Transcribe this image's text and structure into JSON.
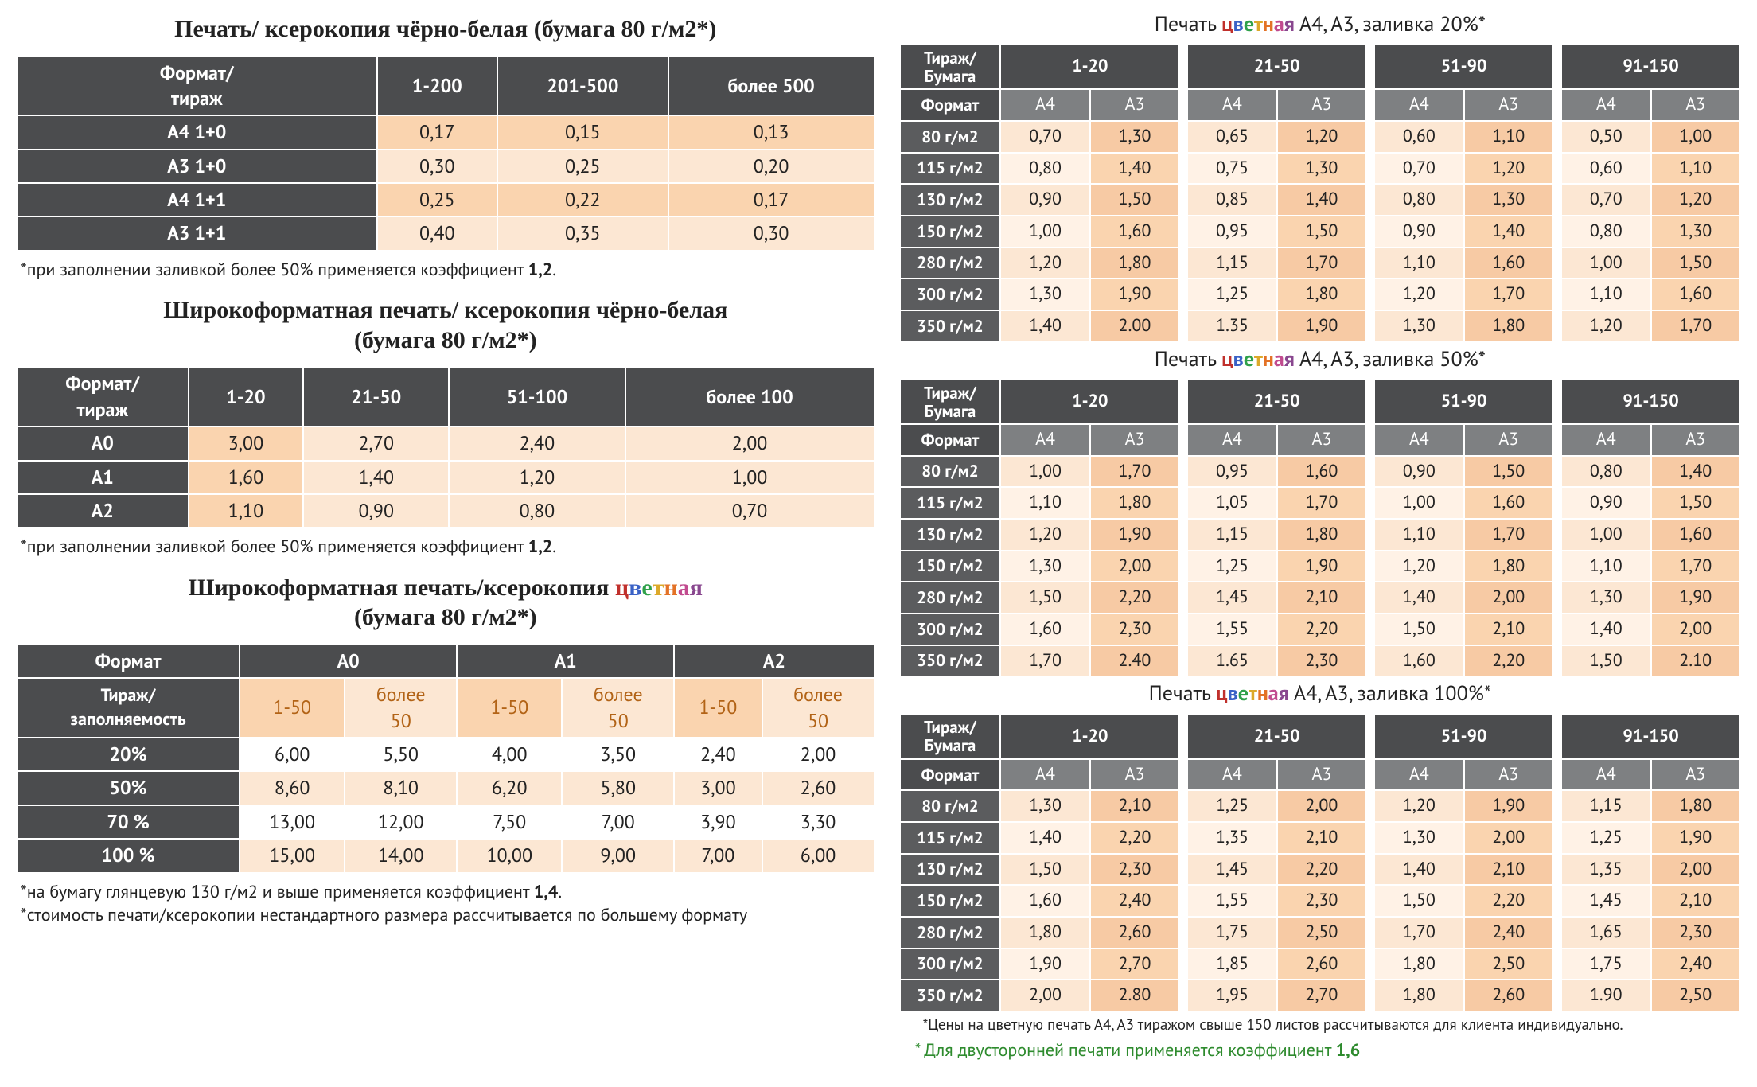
{
  "colors": {
    "header_dark": "#4b4c4e",
    "header_mid": "#7e8082",
    "row_dark": "#5b5c5e",
    "cell_light": "#fce7d3",
    "cell_mid": "#fad4af",
    "cell_dark": "#f7caa4",
    "text_orange": "#b26316",
    "accent_green": "#2e8b2e"
  },
  "left": {
    "table1": {
      "title": "Печать/ ксерокопия чёрно-белая (бумага 80 г/м2*)",
      "header_rowlabel": "Формат/\nтираж",
      "columns": [
        "1-200",
        "201-500",
        "более 500"
      ],
      "rows": [
        {
          "label": "А4 1+0",
          "vals": [
            "0,17",
            "0,15",
            "0,13"
          ]
        },
        {
          "label": "А3 1+0",
          "vals": [
            "0,30",
            "0,25",
            "0,20"
          ]
        },
        {
          "label": "А4 1+1",
          "vals": [
            "0,25",
            "0,22",
            "0,17"
          ]
        },
        {
          "label": "А3 1+1",
          "vals": [
            "0,40",
            "0,35",
            "0,30"
          ]
        }
      ],
      "note_pre": "*при заполнении заливкой более 50% применяется коэффициент ",
      "note_bold": "1,2",
      "note_post": "."
    },
    "table2": {
      "title": "Широкоформатная печать/ ксерокопия чёрно-белая\n(бумага 80 г/м2*)",
      "header_rowlabel": "Формат/\nтираж",
      "columns": [
        "1-20",
        "21-50",
        "51-100",
        "более 100"
      ],
      "rows": [
        {
          "label": "А0",
          "vals": [
            "3,00",
            "2,70",
            "2,40",
            "2,00"
          ]
        },
        {
          "label": "А1",
          "vals": [
            "1,60",
            "1,40",
            "1,20",
            "1,00"
          ]
        },
        {
          "label": "А2",
          "vals": [
            "1,10",
            "0,90",
            "0,80",
            "0,70"
          ]
        }
      ],
      "note_pre": "*при заполнении заливкой более 50% применяется коэффициент ",
      "note_bold": "1,2",
      "note_post": "."
    },
    "table3": {
      "title_pre": "Широкоформатная печать/ксерокопия ",
      "title_sub": "(бумага 80 г/м2*)",
      "header_format": "Формат",
      "header_rowlabel": "Тираж/\nзаполняемость",
      "groups": [
        "А0",
        "А1",
        "А2"
      ],
      "subcols": [
        "1-50",
        "более\n50"
      ],
      "rows": [
        {
          "label": "20%",
          "vals": [
            "6,00",
            "5,50",
            "4,00",
            "3,50",
            "2,40",
            "2,00"
          ]
        },
        {
          "label": "50%",
          "vals": [
            "8,60",
            "8,10",
            "6,20",
            "5,80",
            "3,00",
            "2,60"
          ]
        },
        {
          "label": "70 %",
          "vals": [
            "13,00",
            "12,00",
            "7,50",
            "7,00",
            "3,90",
            "3,30"
          ]
        },
        {
          "label": "100 %",
          "vals": [
            "15,00",
            "14,00",
            "10,00",
            "9,00",
            "7,00",
            "6,00"
          ]
        }
      ],
      "note1_pre": "*на бумагу глянцевую 130 г/м2 и выше применяется коэффициент ",
      "note1_bold": "1,4",
      "note1_post": ".",
      "note2": "*стоимость печати/ксерокопии нестандартного размера рассчитывается по большему формату"
    }
  },
  "right": {
    "title_pre": "Печать ",
    "title_post_20": " А4, А3, заливка 20%*",
    "title_post_50": " А4, А3, заливка 50%*",
    "title_post_100": " А4, А3, заливка 100%*",
    "header_corner": "Тираж/\nБумага",
    "header_format": "Формат",
    "ranges": [
      "1-20",
      "21-50",
      "51-90",
      "91-150"
    ],
    "subcols": [
      "А4",
      "А3"
    ],
    "row_labels": [
      "80 г/м2",
      "115 г/м2",
      "130 г/м2",
      "150 г/м2",
      "280 г/м2",
      "300 г/м2",
      "350 г/м2"
    ],
    "t20": [
      [
        "0,70",
        "1,30",
        "0,65",
        "1,20",
        "0,60",
        "1,10",
        "0,50",
        "1,00"
      ],
      [
        "0,80",
        "1,40",
        "0,75",
        "1,30",
        "0,70",
        "1,20",
        "0,60",
        "1,10"
      ],
      [
        "0,90",
        "1,50",
        "0,85",
        "1,40",
        "0,80",
        "1,30",
        "0,70",
        "1,20"
      ],
      [
        "1,00",
        "1,60",
        "0,95",
        "1,50",
        "0,90",
        "1,40",
        "0,80",
        "1,30"
      ],
      [
        "1,20",
        "1,80",
        "1,15",
        "1,70",
        "1,10",
        "1,60",
        "1,00",
        "1,50"
      ],
      [
        "1,30",
        "1,90",
        "1,25",
        "1,80",
        "1,20",
        "1,70",
        "1,10",
        "1,60"
      ],
      [
        "1,40",
        "2.00",
        "1.35",
        "1,90",
        "1,30",
        "1,80",
        "1,20",
        "1,70"
      ]
    ],
    "t50": [
      [
        "1,00",
        "1,70",
        "0,95",
        "1,60",
        "0,90",
        "1,50",
        "0,80",
        "1,40"
      ],
      [
        "1,10",
        "1,80",
        "1,05",
        "1,70",
        "1,00",
        "1,60",
        "0,90",
        "1,50"
      ],
      [
        "1,20",
        "1,90",
        "1,15",
        "1,80",
        "1,10",
        "1,70",
        "1,00",
        "1,60"
      ],
      [
        "1,30",
        "2,00",
        "1,25",
        "1,90",
        "1,20",
        "1,80",
        "1,10",
        "1,70"
      ],
      [
        "1,50",
        "2,20",
        "1,45",
        "2,10",
        "1,40",
        "2,00",
        "1,30",
        "1,90"
      ],
      [
        "1,60",
        "2,30",
        "1,55",
        "2,20",
        "1,50",
        "2,10",
        "1,40",
        "2,00"
      ],
      [
        "1,70",
        "2.40",
        "1.65",
        "2,30",
        "1,60",
        "2,20",
        "1,50",
        "2.10"
      ]
    ],
    "t100": [
      [
        "1,30",
        "2,10",
        "1,25",
        "2,00",
        "1,20",
        "1,90",
        "1,15",
        "1,80"
      ],
      [
        "1,40",
        "2,20",
        "1,35",
        "2,10",
        "1,30",
        "2,00",
        "1,25",
        "1,90"
      ],
      [
        "1,50",
        "2,30",
        "1,45",
        "2,20",
        "1,40",
        "2,10",
        "1,35",
        "2,00"
      ],
      [
        "1,60",
        "2,40",
        "1,55",
        "2,30",
        "1,50",
        "2,20",
        "1,45",
        "2,10"
      ],
      [
        "1,80",
        "2,60",
        "1,75",
        "2,50",
        "1,70",
        "2,40",
        "1,65",
        "2,30"
      ],
      [
        "1,90",
        "2,70",
        "1,85",
        "2,60",
        "1,80",
        "2,50",
        "1,75",
        "2,40"
      ],
      [
        "2,00",
        "2.80",
        "1,95",
        "2,70",
        "1,80",
        "2,60",
        "1.90",
        "2,50"
      ]
    ],
    "footnote_small": "*Цены на цветную печать А4, А3 тиражом свыше 150 листов рассчитываются для клиента индивидуально.",
    "footnote_green_pre": "* Для двусторонней печати применяется коэффициент ",
    "footnote_green_bold": "1,6"
  }
}
